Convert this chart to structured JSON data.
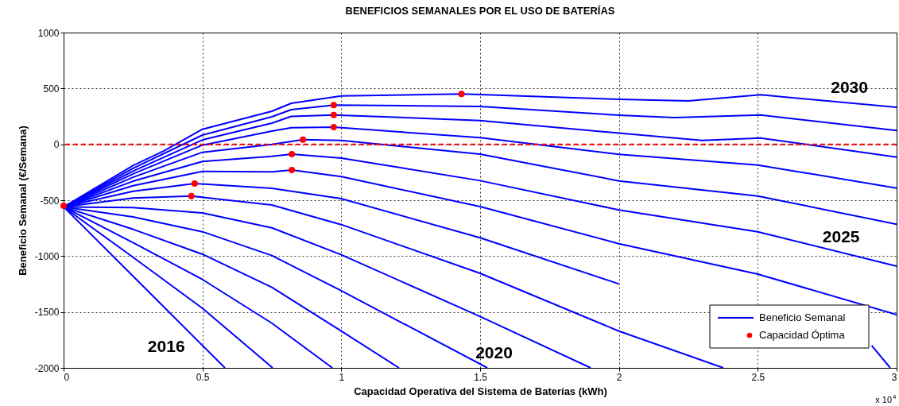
{
  "chart_data": {
    "type": "line",
    "title": "BENEFICIOS SEMANALES POR EL USO DE BATERÍAS",
    "xlabel": "Capacidad Operativa del Sistema de Baterías (kWh)",
    "ylabel": "Beneficio Semanal (€/Semana)",
    "xlim": [
      0,
      3
    ],
    "ylim": [
      -2000,
      1000
    ],
    "xticks": [
      0,
      0.5,
      1,
      1.5,
      2,
      2.5,
      3
    ],
    "yticks": [
      -2000,
      -1500,
      -1000,
      -500,
      0,
      500,
      1000
    ],
    "grid": true,
    "legend": "bottom right",
    "ref_lines": [
      {
        "axis": "y",
        "value": 0,
        "color": "#ff0000",
        "line_style": "dashed"
      }
    ],
    "annotations": [
      {
        "text": "2016",
        "x": 0.45,
        "y": -1675
      },
      {
        "text": "2020",
        "x": 1.427,
        "y": -1870
      },
      {
        "text": "2025",
        "x": 2.8,
        "y": -967
      },
      {
        "text": "2030",
        "x": 2.83,
        "y": 370
      },
      "x 10$^{4}$"
    ],
    "series": [
      {
        "name": "Beneficio Semanal",
        "color": "#0000ff",
        "x": [
          0,
          0.3,
          0.581
        ],
        "values": [
          -560,
          -1303,
          -2000
        ]
      },
      {
        "color": "#0000ff",
        "x": [
          0,
          0.25,
          0.5,
          0.753
        ],
        "values": [
          -560,
          -1010,
          -1467,
          -2000
        ]
      },
      {
        "color": "#0000ff",
        "x": [
          0,
          0.25,
          0.5,
          0.75,
          0.968
        ],
        "values": [
          -560,
          -880,
          -1209,
          -1600,
          -2000
        ]
      },
      {
        "color": "#0000ff",
        "x": [
          0,
          0.25,
          0.5,
          0.75,
          1,
          1.208
        ],
        "values": [
          -560,
          -760,
          -983,
          -1280,
          -1671,
          -2000
        ]
      },
      {
        "color": "#0000ff",
        "x": [
          0,
          0.25,
          0.5,
          0.75,
          1,
          1.526
        ],
        "values": [
          -560,
          -650,
          -782,
          -995,
          -1310,
          -2000
        ]
      },
      {
        "color": "#0000ff",
        "x": [
          0,
          0.25,
          0.5,
          0.75,
          1,
          1.5,
          1.898
        ],
        "values": [
          -560,
          -565,
          -614,
          -747,
          -988,
          -1540,
          -2000
        ]
      },
      {
        "color": "#0000ff",
        "x": [
          0,
          0.25,
          0.46,
          0.75,
          1,
          1.5,
          2,
          2.376
        ],
        "values": [
          -560,
          -480,
          -462,
          -543,
          -718,
          -1154,
          -1671,
          -2000
        ]
      },
      {
        "color": "#0000ff",
        "x": [
          0,
          0.25,
          0.472,
          0.75,
          1,
          1.5,
          2,
          2.5,
          2.91,
          2.977
        ],
        "values": [
          -560,
          -420,
          -351,
          -393,
          -486,
          -836,
          -1249,
          null,
          -1800,
          -2000
        ]
      },
      {
        "color": "#0000ff",
        "x": [
          0,
          0.25,
          0.5,
          0.75,
          0.822,
          1,
          1.5,
          2,
          2.5,
          3
        ],
        "values": [
          -560,
          -370,
          -242,
          -245,
          -230,
          -289,
          -557,
          -889,
          -1161,
          -1524
        ]
      },
      {
        "color": "#0000ff",
        "x": [
          0,
          0.25,
          0.5,
          0.75,
          0.822,
          1,
          1.5,
          2,
          2.5,
          3
        ],
        "values": [
          -560,
          -330,
          -154,
          -107,
          -88,
          -123,
          -325,
          -587,
          -782,
          -1090
        ]
      },
      {
        "color": "#0000ff",
        "x": [
          0,
          0.25,
          0.5,
          0.75,
          0.862,
          1,
          1.5,
          2,
          2.5,
          3
        ],
        "values": [
          -560,
          -295,
          -71,
          0,
          42,
          35,
          -88,
          -327,
          -462,
          -715
        ]
      },
      {
        "color": "#0000ff",
        "x": [
          0,
          0.25,
          0.5,
          0.75,
          0.82,
          0.973,
          1.5,
          2,
          2.5,
          3
        ],
        "values": [
          -560,
          -265,
          -7,
          118,
          149,
          154,
          59,
          -90,
          -185,
          -391
        ]
      },
      {
        "color": "#0000ff",
        "x": [
          0,
          0.25,
          0.5,
          0.75,
          0.82,
          0.973,
          1.5,
          2,
          2.3,
          2.51,
          3
        ],
        "values": [
          -560,
          -240,
          40,
          190,
          250,
          263,
          213,
          100,
          35,
          57,
          -114
        ]
      },
      {
        "color": "#0000ff",
        "x": [
          0,
          0.25,
          0.5,
          0.75,
          0.82,
          0.973,
          1.5,
          2,
          2.2,
          2.51,
          3
        ],
        "values": [
          -560,
          -215,
          83,
          246,
          310,
          351,
          339,
          261,
          239,
          263,
          123
        ]
      },
      {
        "color": "#0000ff",
        "x": [
          0,
          0.25,
          0.36,
          0.5,
          0.75,
          0.82,
          1,
          1.433,
          1.5,
          2,
          2.25,
          2.51,
          3
        ],
        "values": [
          -560,
          -190,
          -60,
          135,
          296,
          367,
          433,
          450,
          445,
          403,
          389,
          443,
          332
        ]
      },
      {
        "type": "scatter",
        "name": "Capacidad Óptima",
        "color": "#ff0000",
        "marker": "circle",
        "x": [
          0,
          0.46,
          0.472,
          0.822,
          0.822,
          0.862,
          0.973,
          0.973,
          0.973,
          1.433
        ],
        "values": [
          -550,
          -462,
          -351,
          -230,
          -88,
          42,
          154,
          263,
          351,
          450
        ]
      }
    ]
  }
}
